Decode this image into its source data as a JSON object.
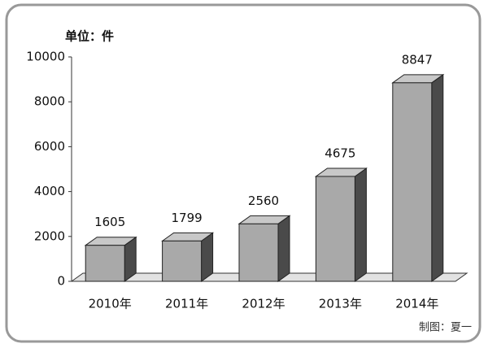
{
  "chart_data": {
    "type": "bar3d",
    "unit_label": "单位：件",
    "footer": "制图：夏一",
    "categories": [
      "2010年",
      "2011年",
      "2012年",
      "2013年",
      "2014年"
    ],
    "values": [
      1605,
      1799,
      2560,
      4675,
      8847
    ],
    "color": "#a9a9a9",
    "ylim": [
      0,
      10000
    ],
    "yticks": [
      0,
      2000,
      4000,
      6000,
      8000,
      10000
    ]
  }
}
